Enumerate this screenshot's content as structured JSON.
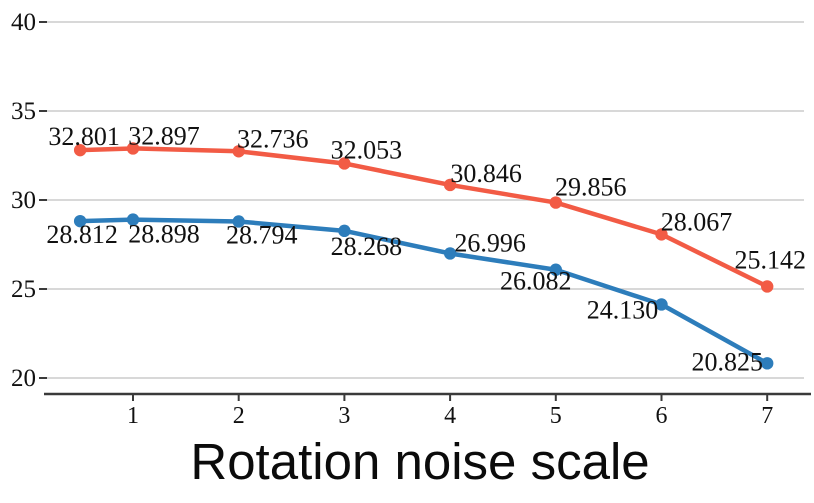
{
  "chart_data": {
    "type": "line",
    "title": "",
    "xlabel": "Rotation noise scale",
    "ylabel": "",
    "x": [
      0.5,
      1,
      2,
      3,
      4,
      5,
      6,
      7
    ],
    "xticks": [
      "1",
      "2",
      "3",
      "4",
      "5",
      "6",
      "7"
    ],
    "xtick_values": [
      1,
      2,
      3,
      4,
      5,
      6,
      7
    ],
    "yticks": [
      "20",
      "25",
      "30",
      "35",
      "40"
    ],
    "ytick_values": [
      20,
      25,
      30,
      35,
      40
    ],
    "xlim": [
      0.18,
      7.45
    ],
    "ylim": [
      19.1,
      40.3
    ],
    "grid": "horizontal-only",
    "legend": "none",
    "series": [
      {
        "name": "upper-line-red",
        "color": "#f25b45",
        "values": [
          32.801,
          32.897,
          32.736,
          32.053,
          30.846,
          29.856,
          28.067,
          25.142
        ],
        "point_labels": [
          "32.801",
          "32.897",
          "32.736",
          "32.053",
          "30.846",
          "29.856",
          "28.067",
          "25.142"
        ],
        "label_offsets": [
          [
            4,
            -5
          ],
          [
            31,
            -4
          ],
          [
            34,
            -4
          ],
          [
            22,
            -5
          ],
          [
            36,
            -3
          ],
          [
            35,
            -7
          ],
          [
            35,
            -4
          ],
          [
            3,
            -18
          ]
        ]
      },
      {
        "name": "lower-line-blue",
        "color": "#2d7dbb",
        "values": [
          28.812,
          28.898,
          28.794,
          28.268,
          26.996,
          26.082,
          24.13,
          20.825
        ],
        "point_labels": [
          "28.812",
          "28.898",
          "28.794",
          "28.268",
          "26.996",
          "26.082",
          "24.130",
          "20.825"
        ],
        "label_offsets": [
          [
            2,
            22
          ],
          [
            31,
            23
          ],
          [
            23,
            22
          ],
          [
            22,
            24
          ],
          [
            40,
            -2
          ],
          [
            -20,
            20
          ],
          [
            -39,
            14
          ],
          [
            -40,
            7
          ]
        ]
      }
    ],
    "colors": {
      "grid": "#cccccc",
      "axis": "#3a3a3a",
      "tick": "#3a3a3a",
      "label_text": "#111111"
    }
  }
}
